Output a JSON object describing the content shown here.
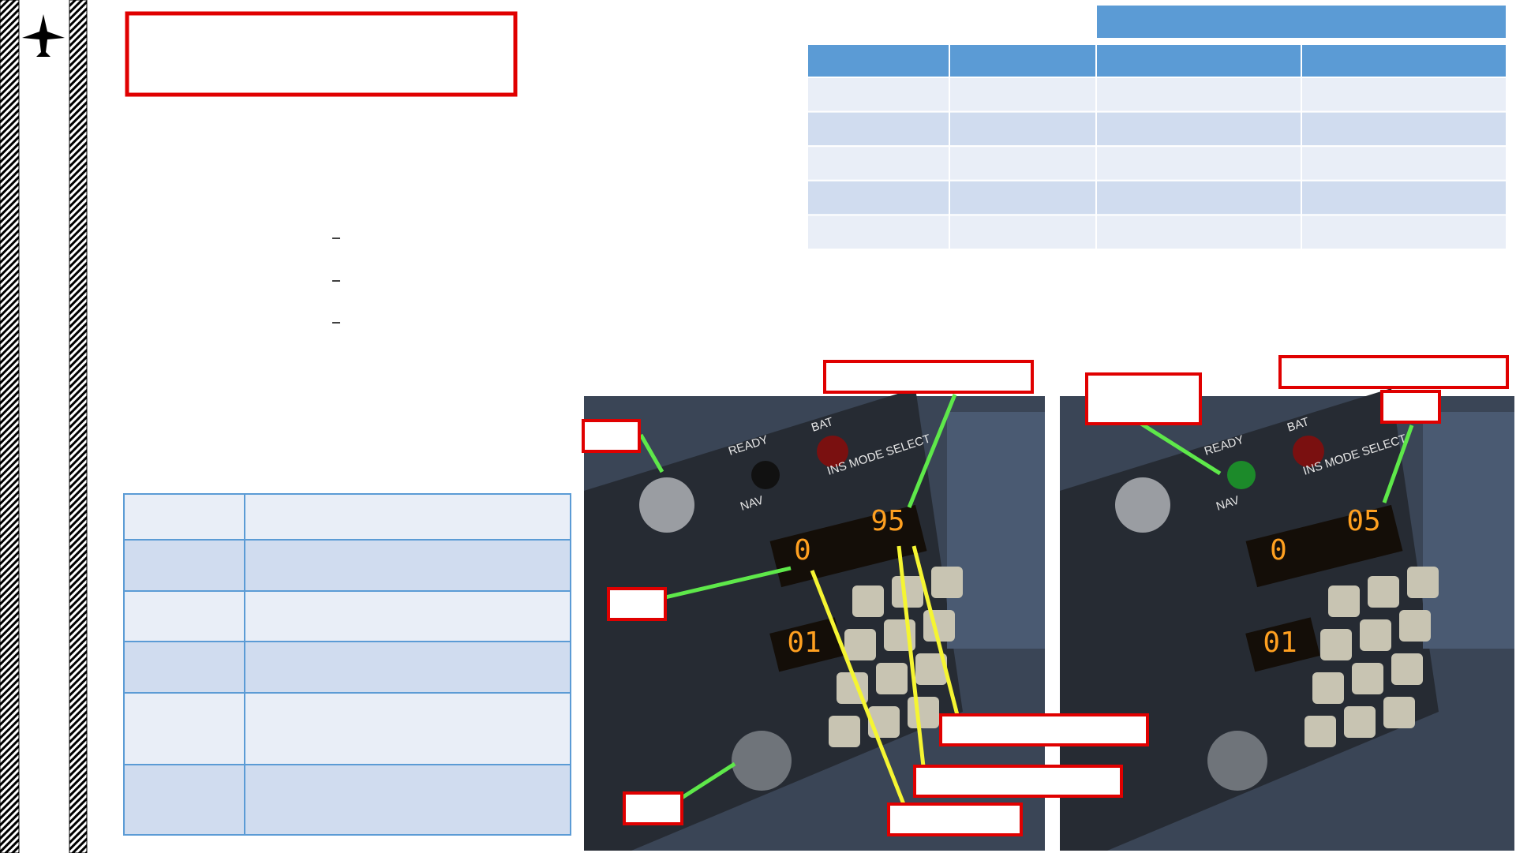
{
  "panels": [
    {
      "legends": [
        "READY",
        "BAT",
        "NAV",
        "INS MODE SELECT"
      ],
      "displays": [
        "0",
        "95",
        "01"
      ]
    },
    {
      "legends": [
        "READY",
        "BAT",
        "NAV",
        "INS MODE SELECT"
      ],
      "displays": [
        "0",
        "05",
        "01"
      ]
    }
  ]
}
